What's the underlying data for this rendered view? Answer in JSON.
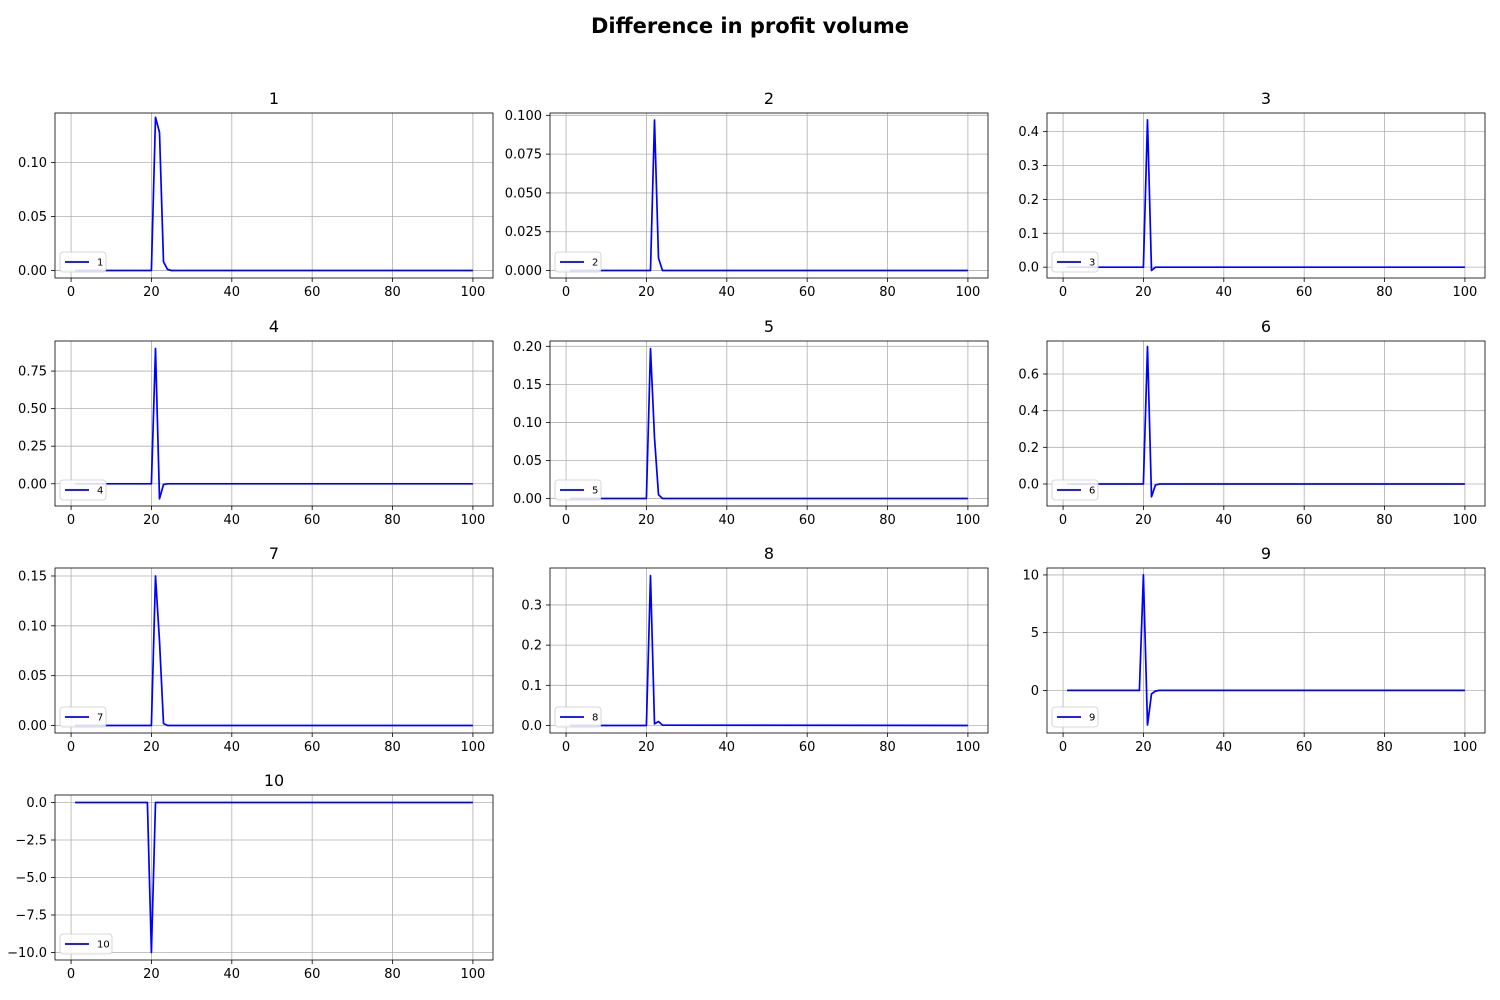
{
  "figure": {
    "title": "Difference in profit volume"
  },
  "style": {
    "line_color": "#0000ff",
    "grid_color": "#b0b0b0",
    "axis_color": "#000000"
  },
  "chart_data": [
    {
      "type": "line",
      "title": "1",
      "legend_label": "1",
      "legend_loc": "lower-left",
      "grid": true,
      "xlim": [
        -4,
        105
      ],
      "ylim": [
        -0.007,
        0.146
      ],
      "xticks": [
        0,
        20,
        40,
        60,
        80,
        100
      ],
      "xtick_labels": [
        "0",
        "20",
        "40",
        "60",
        "80",
        "100"
      ],
      "yticks": [
        0,
        0.05,
        0.1
      ],
      "ytick_labels": [
        "0.00",
        "0.05",
        "0.10"
      ],
      "series": [
        {
          "x": [
            1,
            20,
            21,
            22,
            23,
            24,
            25,
            100
          ],
          "y": [
            0,
            0,
            0.142,
            0.128,
            0.008,
            0.001,
            0,
            0
          ]
        }
      ]
    },
    {
      "type": "line",
      "title": "2",
      "legend_label": "2",
      "legend_loc": "lower-left",
      "grid": true,
      "xlim": [
        -4,
        105
      ],
      "ylim": [
        -0.0048,
        0.1015
      ],
      "xticks": [
        0,
        20,
        40,
        60,
        80,
        100
      ],
      "xtick_labels": [
        "0",
        "20",
        "40",
        "60",
        "80",
        "100"
      ],
      "yticks": [
        0,
        0.025,
        0.05,
        0.075,
        0.1
      ],
      "ytick_labels": [
        "0.000",
        "0.025",
        "0.050",
        "0.075",
        "0.100"
      ],
      "series": [
        {
          "x": [
            1,
            21,
            22,
            23,
            24,
            100
          ],
          "y": [
            0,
            0,
            0.097,
            0.008,
            0,
            0
          ]
        }
      ]
    },
    {
      "type": "line",
      "title": "3",
      "legend_label": "3",
      "legend_loc": "lower-left",
      "grid": true,
      "xlim": [
        -4,
        105
      ],
      "ylim": [
        -0.032,
        0.455
      ],
      "xticks": [
        0,
        20,
        40,
        60,
        80,
        100
      ],
      "xtick_labels": [
        "0",
        "20",
        "40",
        "60",
        "80",
        "100"
      ],
      "yticks": [
        0,
        0.1,
        0.2,
        0.3,
        0.4
      ],
      "ytick_labels": [
        "0.0",
        "0.1",
        "0.2",
        "0.3",
        "0.4"
      ],
      "series": [
        {
          "x": [
            1,
            20,
            21,
            22,
            23,
            24,
            100
          ],
          "y": [
            0,
            0,
            0.435,
            -0.01,
            0,
            0,
            0
          ]
        }
      ]
    },
    {
      "type": "line",
      "title": "4",
      "legend_label": "4",
      "legend_loc": "lower-left",
      "grid": true,
      "xlim": [
        -4,
        105
      ],
      "ylim": [
        -0.148,
        0.95
      ],
      "xticks": [
        0,
        20,
        40,
        60,
        80,
        100
      ],
      "xtick_labels": [
        "0",
        "20",
        "40",
        "60",
        "80",
        "100"
      ],
      "yticks": [
        0,
        0.25,
        0.5,
        0.75
      ],
      "ytick_labels": [
        "0.00",
        "0.25",
        "0.50",
        "0.75"
      ],
      "series": [
        {
          "x": [
            1,
            20,
            21,
            22,
            23,
            24,
            100
          ],
          "y": [
            0,
            0,
            0.9,
            -0.1,
            -0.005,
            0,
            0
          ]
        }
      ]
    },
    {
      "type": "line",
      "title": "5",
      "legend_label": "5",
      "legend_loc": "lower-left",
      "grid": true,
      "xlim": [
        -4,
        105
      ],
      "ylim": [
        -0.0098,
        0.207
      ],
      "xticks": [
        0,
        20,
        40,
        60,
        80,
        100
      ],
      "xtick_labels": [
        "0",
        "20",
        "40",
        "60",
        "80",
        "100"
      ],
      "yticks": [
        0,
        0.05,
        0.1,
        0.15,
        0.2
      ],
      "ytick_labels": [
        "0.00",
        "0.05",
        "0.10",
        "0.15",
        "0.20"
      ],
      "series": [
        {
          "x": [
            1,
            20,
            21,
            22,
            23,
            24,
            100
          ],
          "y": [
            0,
            0,
            0.197,
            0.08,
            0.005,
            0,
            0
          ]
        }
      ]
    },
    {
      "type": "line",
      "title": "6",
      "legend_label": "6",
      "legend_loc": "lower-left",
      "grid": true,
      "xlim": [
        -4,
        105
      ],
      "ylim": [
        -0.12,
        0.78
      ],
      "xticks": [
        0,
        20,
        40,
        60,
        80,
        100
      ],
      "xtick_labels": [
        "0",
        "20",
        "40",
        "60",
        "80",
        "100"
      ],
      "yticks": [
        0,
        0.2,
        0.4,
        0.6
      ],
      "ytick_labels": [
        "0.0",
        "0.2",
        "0.4",
        "0.6"
      ],
      "series": [
        {
          "x": [
            1,
            20,
            21,
            22,
            23,
            24,
            100
          ],
          "y": [
            0,
            0,
            0.75,
            -0.07,
            -0.005,
            0,
            0
          ]
        }
      ]
    },
    {
      "type": "line",
      "title": "7",
      "legend_label": "7",
      "legend_loc": "lower-left",
      "grid": true,
      "xlim": [
        -4,
        105
      ],
      "ylim": [
        -0.0075,
        0.158
      ],
      "xticks": [
        0,
        20,
        40,
        60,
        80,
        100
      ],
      "xtick_labels": [
        "0",
        "20",
        "40",
        "60",
        "80",
        "100"
      ],
      "yticks": [
        0,
        0.05,
        0.1,
        0.15
      ],
      "ytick_labels": [
        "0.00",
        "0.05",
        "0.10",
        "0.15"
      ],
      "series": [
        {
          "x": [
            1,
            20,
            21,
            22,
            23,
            24,
            100
          ],
          "y": [
            0,
            0,
            0.15,
            0.085,
            0.002,
            0,
            0
          ]
        }
      ]
    },
    {
      "type": "line",
      "title": "8",
      "legend_label": "8",
      "legend_loc": "lower-left",
      "grid": true,
      "xlim": [
        -4,
        105
      ],
      "ylim": [
        -0.0187,
        0.392
      ],
      "xticks": [
        0,
        20,
        40,
        60,
        80,
        100
      ],
      "xtick_labels": [
        "0",
        "20",
        "40",
        "60",
        "80",
        "100"
      ],
      "yticks": [
        0,
        0.1,
        0.2,
        0.3
      ],
      "ytick_labels": [
        "0.0",
        "0.1",
        "0.2",
        "0.3"
      ],
      "series": [
        {
          "x": [
            1,
            20,
            21,
            22,
            23,
            24,
            100
          ],
          "y": [
            0,
            0,
            0.373,
            0.004,
            0.01,
            0.001,
            0
          ]
        }
      ]
    },
    {
      "type": "line",
      "title": "9",
      "legend_label": "9",
      "legend_loc": "lower-left",
      "grid": true,
      "xlim": [
        -4,
        105
      ],
      "ylim": [
        -3.69,
        10.6
      ],
      "xticks": [
        0,
        20,
        40,
        60,
        80,
        100
      ],
      "xtick_labels": [
        "0",
        "20",
        "40",
        "60",
        "80",
        "100"
      ],
      "yticks": [
        0,
        5,
        10
      ],
      "ytick_labels": [
        "0",
        "5",
        "10"
      ],
      "series": [
        {
          "x": [
            1,
            19,
            20,
            21,
            22,
            23,
            24,
            100
          ],
          "y": [
            0,
            0,
            10,
            -3,
            -0.3,
            -0.05,
            0,
            0
          ]
        }
      ]
    },
    {
      "type": "line",
      "title": "10",
      "legend_label": "10",
      "legend_loc": "lower-left",
      "grid": true,
      "xlim": [
        -4,
        105
      ],
      "ylim": [
        -10.5,
        0.5
      ],
      "xticks": [
        0,
        20,
        40,
        60,
        80,
        100
      ],
      "xtick_labels": [
        "0",
        "20",
        "40",
        "60",
        "80",
        "100"
      ],
      "yticks": [
        0,
        -2.5,
        -5,
        -7.5,
        -10
      ],
      "ytick_labels": [
        "0.0",
        "−2.5",
        "−5.0",
        "−7.5",
        "−10.0"
      ],
      "series": [
        {
          "x": [
            1,
            19,
            20,
            21,
            100
          ],
          "y": [
            0,
            0,
            -10,
            0,
            0
          ]
        }
      ]
    }
  ]
}
